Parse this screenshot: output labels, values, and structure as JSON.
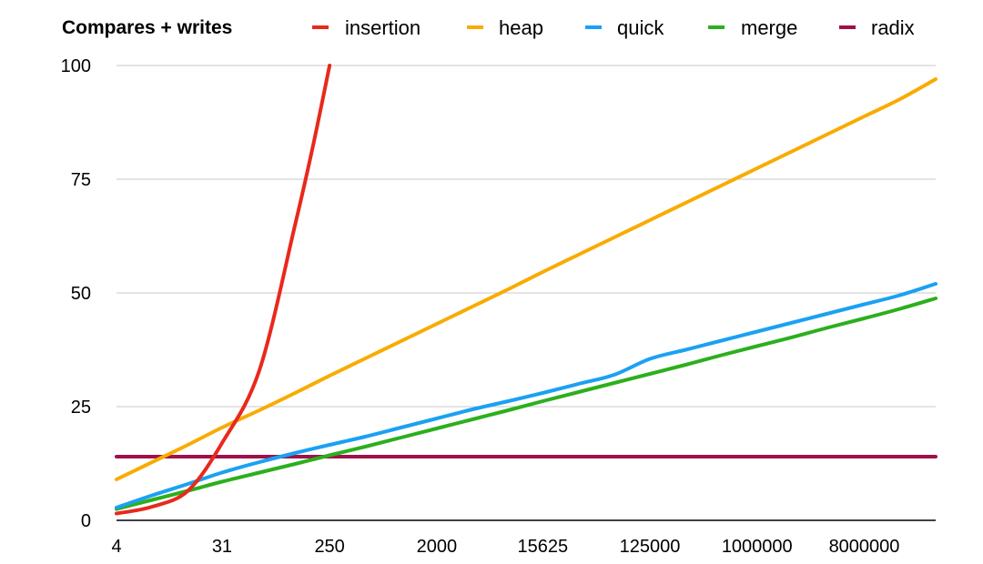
{
  "chart_data": {
    "type": "line",
    "title": "Compares + writes",
    "xlabel": "",
    "ylabel": "",
    "x_scale": "log",
    "x_ticks": [
      "4",
      "31",
      "250",
      "2000",
      "15625",
      "125000",
      "1000000",
      "8000000"
    ],
    "x": [
      4,
      8,
      16,
      31,
      64,
      128,
      250,
      500,
      1000,
      2000,
      4000,
      8000,
      15625,
      31250,
      62500,
      125000,
      250000,
      500000,
      1000000,
      2000000,
      4000000,
      8000000,
      16000000,
      32000000
    ],
    "ylim": [
      0,
      100
    ],
    "y_ticks": [
      "0",
      "25",
      "50",
      "75",
      "100"
    ],
    "grid": true,
    "legend_position": "top",
    "series": [
      {
        "name": "insertion",
        "color": "#e8291c",
        "x": [
          4,
          8,
          16,
          31,
          64,
          128,
          180,
          250
        ],
        "values": [
          1.5,
          3,
          6.5,
          17,
          33,
          65,
          82,
          100
        ]
      },
      {
        "name": "heap",
        "color": "#f9ab00",
        "values": [
          9.0,
          12.8,
          16.6,
          20.4,
          24.2,
          28.0,
          31.8,
          35.6,
          39.4,
          43.2,
          47.0,
          50.8,
          54.6,
          58.4,
          62.2,
          66.0,
          69.8,
          73.6,
          77.4,
          81.2,
          85.0,
          88.8,
          92.6,
          97.0
        ]
      },
      {
        "name": "quick",
        "color": "#1ba1f2",
        "values": [
          2.8,
          5.5,
          8.0,
          10.5,
          12.8,
          14.8,
          16.6,
          18.4,
          20.4,
          22.4,
          24.4,
          26.2,
          28.0,
          30.0,
          32.0,
          35.5,
          37.5,
          39.5,
          41.5,
          43.5,
          45.5,
          47.5,
          49.5,
          52.0
        ]
      },
      {
        "name": "merge",
        "color": "#2caf1d",
        "values": [
          2.5,
          4.5,
          6.5,
          8.5,
          10.5,
          12.4,
          14.3,
          16.2,
          18.2,
          20.2,
          22.2,
          24.2,
          26.2,
          28.2,
          30.2,
          32.2,
          34.2,
          36.3,
          38.3,
          40.3,
          42.4,
          44.4,
          46.5,
          48.8
        ]
      },
      {
        "name": "radix",
        "color": "#a0104a",
        "values": [
          14,
          14,
          14,
          14,
          14,
          14,
          14,
          14,
          14,
          14,
          14,
          14,
          14,
          14,
          14,
          14,
          14,
          14,
          14,
          14,
          14,
          14,
          14,
          14
        ]
      }
    ]
  }
}
